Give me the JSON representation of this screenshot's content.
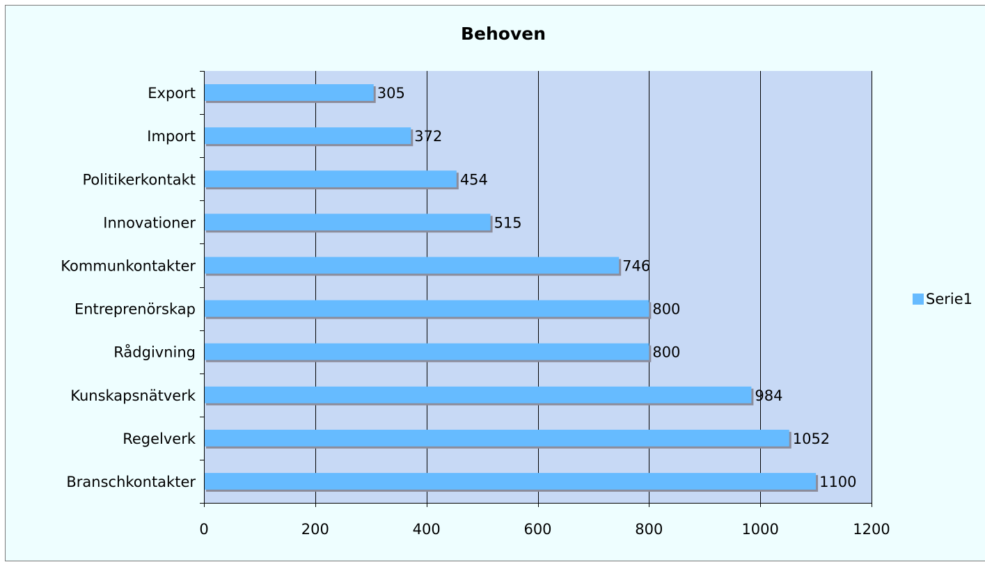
{
  "chart_data": {
    "type": "bar",
    "orientation": "horizontal",
    "title": "Behoven",
    "xlabel": "",
    "ylabel": "",
    "categories": [
      "Branschkontakter",
      "Regelverk",
      "Kunskapsnätverk",
      "Rådgivning",
      "Entreprenörskap",
      "Kommunkontakter",
      "Innovationer",
      "Politikerkontakt",
      "Import",
      "Export"
    ],
    "series": [
      {
        "name": "Serie1",
        "values": [
          1100,
          1052,
          984,
          800,
          800,
          746,
          515,
          454,
          372,
          305
        ]
      }
    ],
    "xlim": [
      0,
      1200
    ],
    "x_ticks": [
      0,
      200,
      400,
      600,
      800,
      1000,
      1200
    ],
    "grid": "vertical",
    "legend": "right",
    "data_labels": true,
    "colors": {
      "bar": "#66bbff",
      "bar_shadow": "#8c8c9a",
      "plot_background": "#c7d9f5",
      "chart_background": "#eefeff",
      "grid": "#000000"
    }
  }
}
